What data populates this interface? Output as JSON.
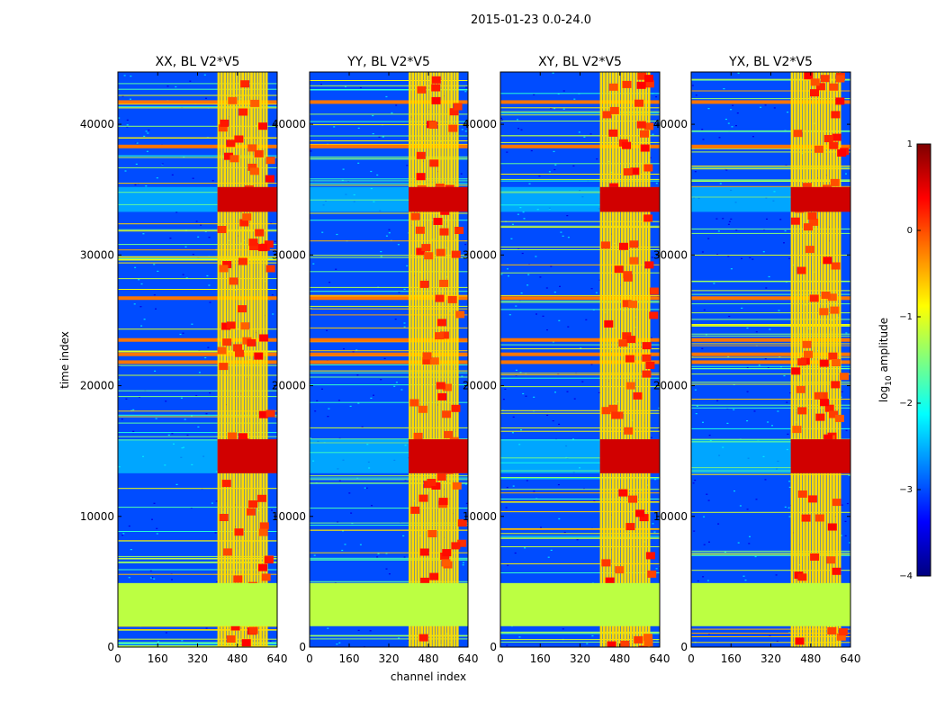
{
  "figure": {
    "suptitle": "2015-01-23 0.0-24.0",
    "xlabel": "channel index",
    "ylabel": "time index"
  },
  "colormap": {
    "name": "jet",
    "stops": [
      "#00007f",
      "#0000ff",
      "#007fff",
      "#00ffff",
      "#7fff7f",
      "#ffff00",
      "#ff7f00",
      "#ff0000",
      "#7f0000"
    ],
    "label_main": "log",
    "label_sub": "10",
    "label_tail": " amplitude",
    "ticks": [
      "1",
      "0",
      "−1",
      "−2",
      "−3",
      "−4"
    ],
    "tick_values": [
      1,
      0,
      -1,
      -2,
      -3,
      -4
    ],
    "range": [
      -4,
      1
    ]
  },
  "chart_data": [
    {
      "type": "heatmap",
      "title": "XX, BL V2*V5",
      "xlim": [
        0,
        640
      ],
      "ylim": [
        0,
        44000
      ],
      "xticks": [
        "0",
        "160",
        "320",
        "480",
        "640"
      ],
      "xtick_values": [
        0,
        160,
        320,
        480,
        640
      ],
      "yticks": [
        "0",
        "10000",
        "20000",
        "30000",
        "40000"
      ],
      "ytick_values": [
        0,
        10000,
        20000,
        30000,
        40000
      ],
      "background_level": -3.0,
      "flagged_band": {
        "t_range": [
          1600,
          4900
        ],
        "level": -1.2
      },
      "bright_channel_band": [
        400,
        600
      ],
      "strong_rfi_times": [
        [
          13300,
          15900
        ],
        [
          33300,
          35200
        ]
      ],
      "horizontal_rfi_times": [
        21800,
        22400,
        23500,
        26700,
        38300,
        41700
      ]
    },
    {
      "type": "heatmap",
      "title": "YY, BL V2*V5",
      "xlim": [
        0,
        640
      ],
      "ylim": [
        0,
        44000
      ],
      "xticks": [
        "0",
        "160",
        "320",
        "480",
        "640"
      ],
      "xtick_values": [
        0,
        160,
        320,
        480,
        640
      ],
      "yticks": [
        "0",
        "10000",
        "20000",
        "30000",
        "40000"
      ],
      "ytick_values": [
        0,
        10000,
        20000,
        30000,
        40000
      ],
      "background_level": -3.0,
      "flagged_band": {
        "t_range": [
          1600,
          4900
        ],
        "level": -1.2
      },
      "bright_channel_band": [
        400,
        600
      ],
      "strong_rfi_times": [
        [
          13300,
          15900
        ],
        [
          33300,
          35200
        ]
      ],
      "horizontal_rfi_times": [
        21800,
        22400,
        23500,
        26700,
        38300,
        41700
      ]
    },
    {
      "type": "heatmap",
      "title": "XY, BL V2*V5",
      "xlim": [
        0,
        640
      ],
      "ylim": [
        0,
        44000
      ],
      "xticks": [
        "0",
        "160",
        "320",
        "480",
        "640"
      ],
      "xtick_values": [
        0,
        160,
        320,
        480,
        640
      ],
      "yticks": [
        "0",
        "10000",
        "20000",
        "30000",
        "40000"
      ],
      "ytick_values": [
        0,
        10000,
        20000,
        30000,
        40000
      ],
      "background_level": -3.0,
      "flagged_band": {
        "t_range": [
          1600,
          4900
        ],
        "level": -1.2
      },
      "bright_channel_band": [
        400,
        600
      ],
      "strong_rfi_times": [
        [
          13300,
          15900
        ],
        [
          33300,
          35200
        ]
      ],
      "horizontal_rfi_times": [
        21800,
        22400,
        23500,
        26700,
        38300,
        41700
      ]
    },
    {
      "type": "heatmap",
      "title": "YX, BL V2*V5",
      "xlim": [
        0,
        640
      ],
      "ylim": [
        0,
        44000
      ],
      "xticks": [
        "0",
        "160",
        "320",
        "480",
        "640"
      ],
      "xtick_values": [
        0,
        160,
        320,
        480,
        640
      ],
      "yticks": [
        "0",
        "10000",
        "20000",
        "30000",
        "40000"
      ],
      "ytick_values": [
        0,
        10000,
        20000,
        30000,
        40000
      ],
      "background_level": -3.0,
      "flagged_band": {
        "t_range": [
          1600,
          4900
        ],
        "level": -1.2
      },
      "bright_channel_band": [
        400,
        600
      ],
      "strong_rfi_times": [
        [
          13300,
          15900
        ],
        [
          33300,
          35200
        ]
      ],
      "horizontal_rfi_times": [
        21800,
        22400,
        23500,
        26700,
        38300,
        41700
      ]
    }
  ]
}
